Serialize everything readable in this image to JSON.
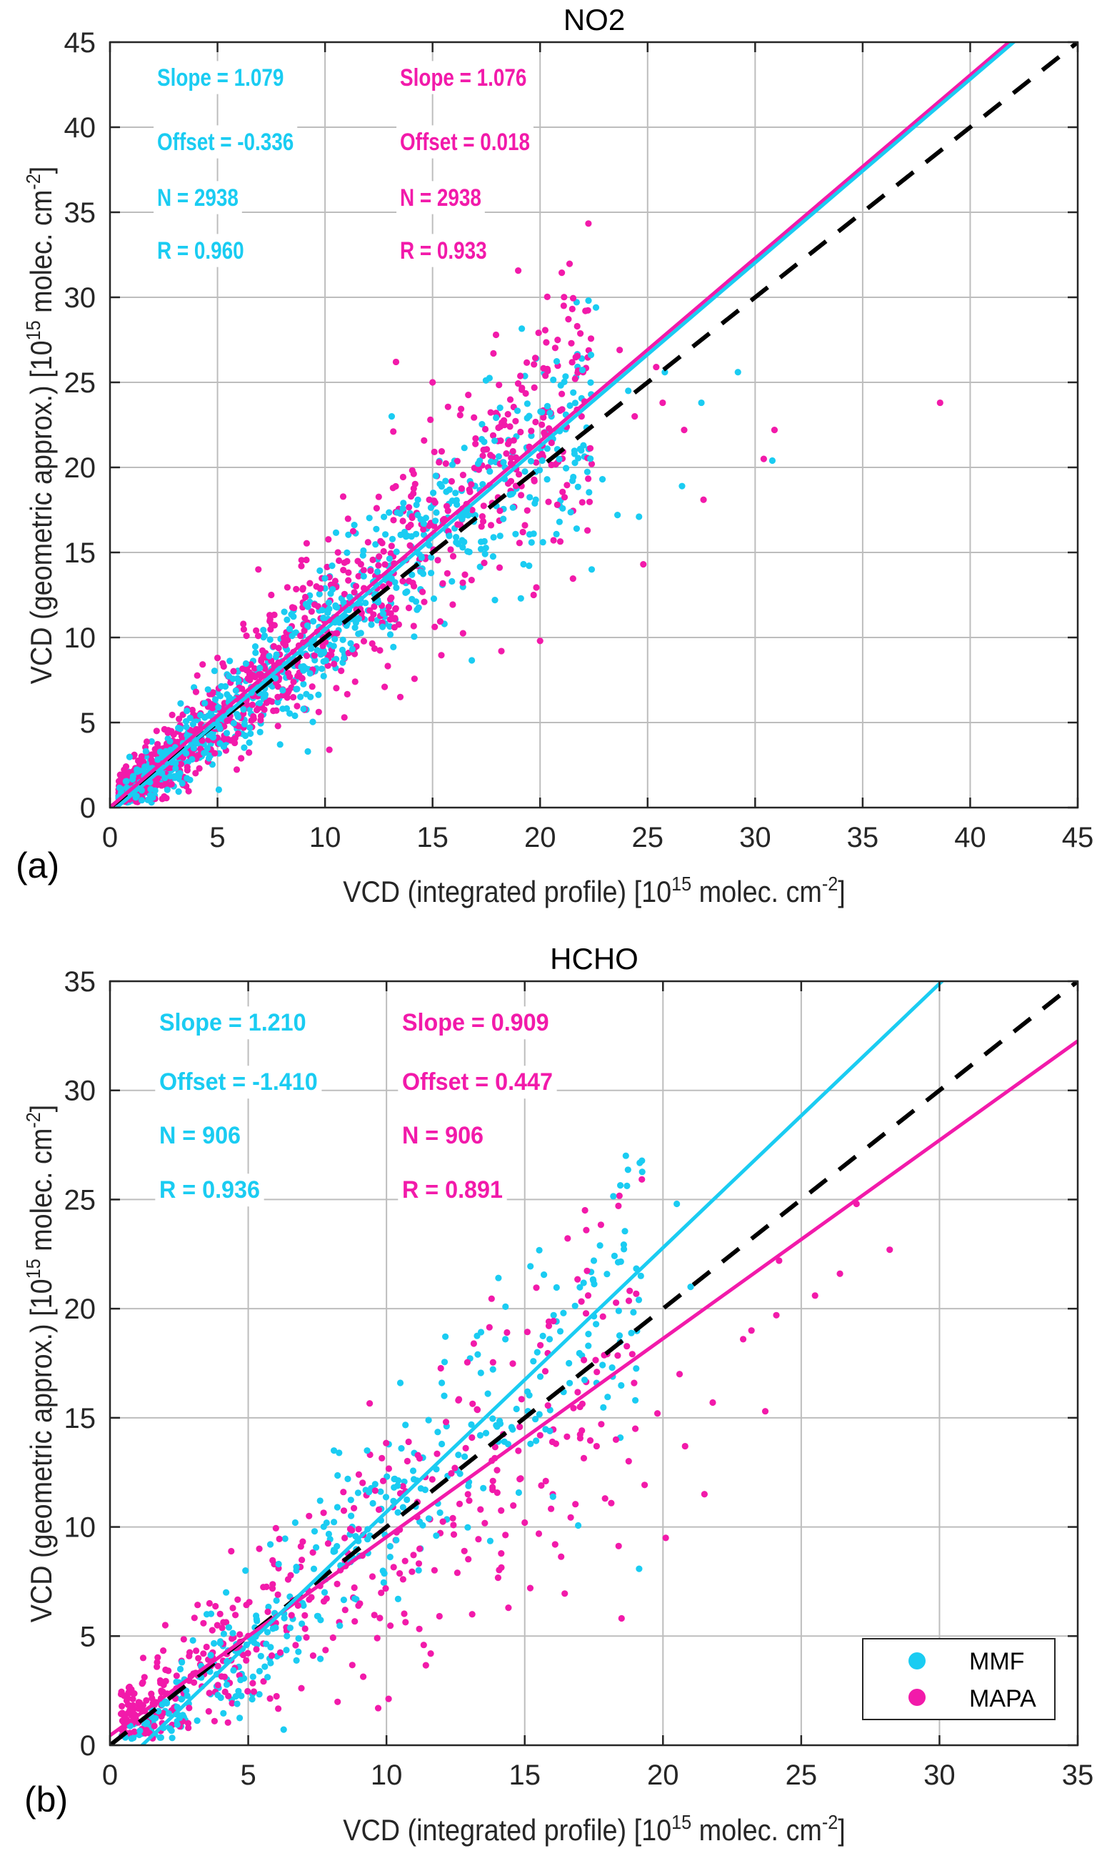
{
  "chart_data": [
    {
      "type": "scatter",
      "panel_label": "(a)",
      "title": "NO2",
      "xlabel": "VCD (integrated profile) [10^15 molec. cm^-2]",
      "ylabel": "VCD (geometric approx.) [10^15 molec. cm^-2]",
      "xlabel_parts": {
        "pre": "VCD (integrated profile) [10",
        "sup1": "15",
        "mid": " molec. cm",
        "sup2": "-2",
        "post": "]"
      },
      "ylabel_parts": {
        "pre": "VCD (geometric approx.) [10",
        "sup1": "15",
        "mid": " molec. cm",
        "sup2": "-2",
        "post": "]"
      },
      "xlim": [
        0,
        45
      ],
      "ylim": [
        0,
        45
      ],
      "xticks": [
        0,
        5,
        10,
        15,
        20,
        25,
        30,
        35,
        40,
        45
      ],
      "yticks": [
        0,
        5,
        10,
        15,
        20,
        25,
        30,
        35,
        40,
        45
      ],
      "grid": true,
      "one_to_one_line": {
        "style": "dashed",
        "color": "#000000"
      },
      "series": [
        {
          "name": "MMF",
          "color": "#1ACCF2",
          "fit": {
            "slope": 1.079,
            "offset": -0.336
          },
          "stats": {
            "slope_label": "Slope = 1.079",
            "offset_label": "Offset = -0.336",
            "n_label": "N = 2938",
            "r_label": "R = 0.960"
          },
          "n": 2938,
          "sample_points": [
            [
              22.6,
              29.4
            ],
            [
              21.2,
              23.1
            ],
            [
              19.4,
              22.9
            ],
            [
              25.8,
              25.6
            ],
            [
              29.2,
              25.6
            ],
            [
              30.8,
              20.4
            ],
            [
              27.5,
              23.8
            ],
            [
              26.6,
              18.9
            ],
            [
              24.1,
              24.5
            ],
            [
              20.1,
              20.4
            ],
            [
              18.6,
              18.4
            ],
            [
              22.9,
              19.3
            ],
            [
              23.6,
              17.2
            ],
            [
              24.6,
              17.1
            ],
            [
              21.7,
              16.4
            ],
            [
              19.7,
              16.1
            ],
            [
              16.4,
              15.3
            ],
            [
              15.9,
              13.3
            ],
            [
              17.9,
              12.2
            ],
            [
              22.4,
              14.0
            ],
            [
              14.3,
              14.3
            ],
            [
              12.3,
              13.2
            ],
            [
              13.1,
              23.0
            ],
            [
              15.6,
              19.2
            ],
            [
              17.4,
              21.5
            ],
            [
              16.6,
              17.5
            ],
            [
              12.7,
              11.4
            ],
            [
              11.0,
              10.7
            ],
            [
              9.8,
              9.0
            ],
            [
              9.0,
              8.3
            ],
            [
              9.2,
              3.3
            ],
            [
              9.0,
              5.8
            ],
            [
              8.6,
              5.4
            ],
            [
              7.8,
              6.2
            ],
            [
              6.5,
              4.7
            ],
            [
              5.3,
              3.6
            ],
            [
              4.6,
              2.9
            ],
            [
              3.2,
              1.8
            ],
            [
              2.1,
              1.0
            ],
            [
              1.2,
              0.6
            ],
            [
              7.2,
              7.0
            ],
            [
              5.6,
              5.7
            ],
            [
              4.1,
              4.2
            ],
            [
              10.5,
              11.8
            ],
            [
              11.8,
              13.6
            ],
            [
              13.7,
              16.2
            ],
            [
              14.8,
              15.8
            ],
            [
              18.3,
              20.3
            ],
            [
              19.8,
              18.1
            ],
            [
              21.6,
              20.8
            ]
          ]
        },
        {
          "name": "MAPA",
          "color": "#F21AAA",
          "fit": {
            "slope": 1.076,
            "offset": 0.018
          },
          "stats": {
            "slope_label": "Slope = 1.076",
            "offset_label": "Offset = 0.018",
            "n_label": "N = 2938",
            "r_label": "R = 0.933"
          },
          "n": 2938,
          "sample_points": [
            [
              38.6,
              23.8
            ],
            [
              30.4,
              20.5
            ],
            [
              30.9,
              22.2
            ],
            [
              21.1,
              29.5
            ],
            [
              24.4,
              23.0
            ],
            [
              23.7,
              26.9
            ],
            [
              25.4,
              25.9
            ],
            [
              22.0,
              25.6
            ],
            [
              26.7,
              22.2
            ],
            [
              27.6,
              18.1
            ],
            [
              25.7,
              23.8
            ],
            [
              20.0,
              9.8
            ],
            [
              24.8,
              14.3
            ],
            [
              18.2,
              9.2
            ],
            [
              19.7,
              12.5
            ],
            [
              17.0,
              21.7
            ],
            [
              13.3,
              26.2
            ],
            [
              14.9,
              22.8
            ],
            [
              12.0,
              15.6
            ],
            [
              9.9,
              9.5
            ],
            [
              11.4,
              7.4
            ],
            [
              13.5,
              6.5
            ],
            [
              10.2,
              3.4
            ],
            [
              10.9,
              5.3
            ],
            [
              7.8,
              6.5
            ],
            [
              6.1,
              2.9
            ],
            [
              5.8,
              3.8
            ],
            [
              3.5,
              1.6
            ],
            [
              2.4,
              1.3
            ],
            [
              1.4,
              2.4
            ],
            [
              1.0,
              1.5
            ],
            [
              2.2,
              3.5
            ],
            [
              4.0,
              6.8
            ],
            [
              5.0,
              8.8
            ],
            [
              6.2,
              10.8
            ],
            [
              7.5,
              12.5
            ],
            [
              8.9,
              14.2
            ],
            [
              10.6,
              15.0
            ],
            [
              12.4,
              17.6
            ],
            [
              14.0,
              18.3
            ],
            [
              15.3,
              20.3
            ],
            [
              16.8,
              19.0
            ],
            [
              18.6,
              22.4
            ],
            [
              19.2,
              16.2
            ],
            [
              20.8,
              17.8
            ],
            [
              22.4,
              20.2
            ],
            [
              6.9,
              14.0
            ],
            [
              9.6,
              13.0
            ],
            [
              11.2,
              12.0
            ],
            [
              8.2,
              10.3
            ]
          ]
        }
      ]
    },
    {
      "type": "scatter",
      "panel_label": "(b)",
      "title": "HCHO",
      "xlabel": "VCD (integrated profile) [10^15 molec. cm^-2]",
      "ylabel": "VCD (geometric approx.) [10^15 molec. cm^-2]",
      "xlabel_parts": {
        "pre": "VCD (integrated profile) [10",
        "sup1": "15",
        "mid": " molec. cm",
        "sup2": "-2",
        "post": "]"
      },
      "ylabel_parts": {
        "pre": "VCD (geometric approx.) [10",
        "sup1": "15",
        "mid": " molec. cm",
        "sup2": "-2",
        "post": "]"
      },
      "xlim": [
        0,
        35
      ],
      "ylim": [
        0,
        35
      ],
      "xticks": [
        0,
        5,
        10,
        15,
        20,
        25,
        30,
        35
      ],
      "yticks": [
        0,
        5,
        10,
        15,
        20,
        25,
        30,
        35
      ],
      "grid": true,
      "legend": {
        "placement": "bottom-right",
        "entries": [
          "MMF",
          "MAPA"
        ]
      },
      "one_to_one_line": {
        "style": "dashed",
        "color": "#000000"
      },
      "series": [
        {
          "name": "MMF",
          "color": "#1ACCF2",
          "fit": {
            "slope": 1.21,
            "offset": -1.41
          },
          "stats": {
            "slope_label": "Slope = 1.210",
            "offset_label": "Offset = -1.410",
            "n_label": "N = 906",
            "r_label": "R = 0.936"
          },
          "n": 906,
          "sample_points": [
            [
              20.5,
              24.8
            ],
            [
              17.5,
              22.2
            ],
            [
              21.0,
              21.0
            ],
            [
              16.4,
              19.8
            ],
            [
              15.9,
              18.6
            ],
            [
              14.3,
              18.6
            ],
            [
              13.3,
              17.9
            ],
            [
              12.0,
              16.6
            ],
            [
              10.5,
              16.6
            ],
            [
              13.6,
              14.3
            ],
            [
              12.0,
              13.8
            ],
            [
              9.3,
              13.5
            ],
            [
              8.1,
              13.5
            ],
            [
              10.3,
              12.2
            ],
            [
              8.6,
              12.2
            ],
            [
              7.6,
              11.2
            ],
            [
              6.7,
              10.2
            ],
            [
              5.8,
              9.2
            ],
            [
              4.9,
              8.0
            ],
            [
              4.2,
              7.0
            ],
            [
              3.5,
              6.0
            ],
            [
              3.0,
              4.8
            ],
            [
              2.6,
              3.8
            ],
            [
              2.4,
              2.9
            ],
            [
              2.0,
              2.0
            ],
            [
              1.5,
              1.3
            ],
            [
              3.9,
              2.3
            ],
            [
              4.6,
              1.9
            ],
            [
              5.6,
              3.6
            ],
            [
              6.4,
              5.0
            ],
            [
              7.0,
              6.4
            ],
            [
              7.8,
              7.6
            ],
            [
              8.7,
              8.4
            ],
            [
              9.4,
              9.6
            ],
            [
              10.6,
              10.9
            ],
            [
              11.4,
              11.7
            ],
            [
              12.6,
              13.3
            ],
            [
              14.0,
              14.6
            ],
            [
              15.1,
              16.2
            ],
            [
              16.6,
              17.5
            ],
            [
              17.3,
              18.3
            ],
            [
              18.4,
              19.9
            ],
            [
              19.2,
              21.5
            ],
            [
              19.0,
              15.8
            ],
            [
              11.8,
              9.6
            ],
            [
              9.8,
              10.3
            ],
            [
              7.4,
              9.8
            ],
            [
              6.1,
              8.3
            ],
            [
              4.3,
              5.4
            ],
            [
              3.3,
              3.1
            ]
          ]
        },
        {
          "name": "MAPA",
          "color": "#F21AAA",
          "fit": {
            "slope": 0.909,
            "offset": 0.447
          },
          "stats": {
            "slope_label": "Slope = 0.909",
            "offset_label": "Offset = 0.447",
            "n_label": "N = 906",
            "r_label": "R = 0.891"
          },
          "n": 906,
          "sample_points": [
            [
              27.0,
              24.8
            ],
            [
              28.2,
              22.7
            ],
            [
              24.2,
              22.2
            ],
            [
              26.4,
              21.6
            ],
            [
              25.5,
              20.6
            ],
            [
              23.2,
              19.0
            ],
            [
              24.1,
              19.7
            ],
            [
              22.9,
              18.6
            ],
            [
              23.7,
              15.3
            ],
            [
              20.8,
              13.7
            ],
            [
              21.5,
              11.5
            ],
            [
              20.1,
              9.5
            ],
            [
              21.8,
              15.7
            ],
            [
              20.6,
              17.0
            ],
            [
              19.8,
              15.2
            ],
            [
              19.0,
              14.5
            ],
            [
              18.3,
              14.0
            ],
            [
              17.6,
              13.7
            ],
            [
              17.0,
              15.5
            ],
            [
              16.0,
              13.9
            ],
            [
              15.6,
              11.9
            ],
            [
              15.0,
              10.2
            ],
            [
              14.0,
              12.6
            ],
            [
              13.4,
              10.8
            ],
            [
              12.4,
              10.4
            ],
            [
              11.2,
              9.0
            ],
            [
              10.6,
              7.6
            ],
            [
              9.7,
              1.7
            ],
            [
              11.6,
              4.2
            ],
            [
              13.1,
              6.0
            ],
            [
              15.2,
              7.2
            ],
            [
              16.1,
              9.2
            ],
            [
              8.6,
              8.8
            ],
            [
              7.6,
              7.3
            ],
            [
              6.8,
              6.4
            ],
            [
              6.0,
              5.6
            ],
            [
              5.0,
              5.0
            ],
            [
              4.2,
              4.2
            ],
            [
              3.3,
              3.6
            ],
            [
              2.4,
              2.6
            ],
            [
              1.6,
              1.9
            ],
            [
              0.9,
              1.4
            ],
            [
              1.2,
              4.0
            ],
            [
              2.0,
              5.5
            ],
            [
              3.6,
              6.5
            ],
            [
              5.4,
              9.0
            ],
            [
              7.2,
              10.5
            ],
            [
              9.0,
              12.4
            ],
            [
              10.8,
              13.9
            ],
            [
              12.6,
              15.8
            ]
          ]
        }
      ]
    }
  ]
}
